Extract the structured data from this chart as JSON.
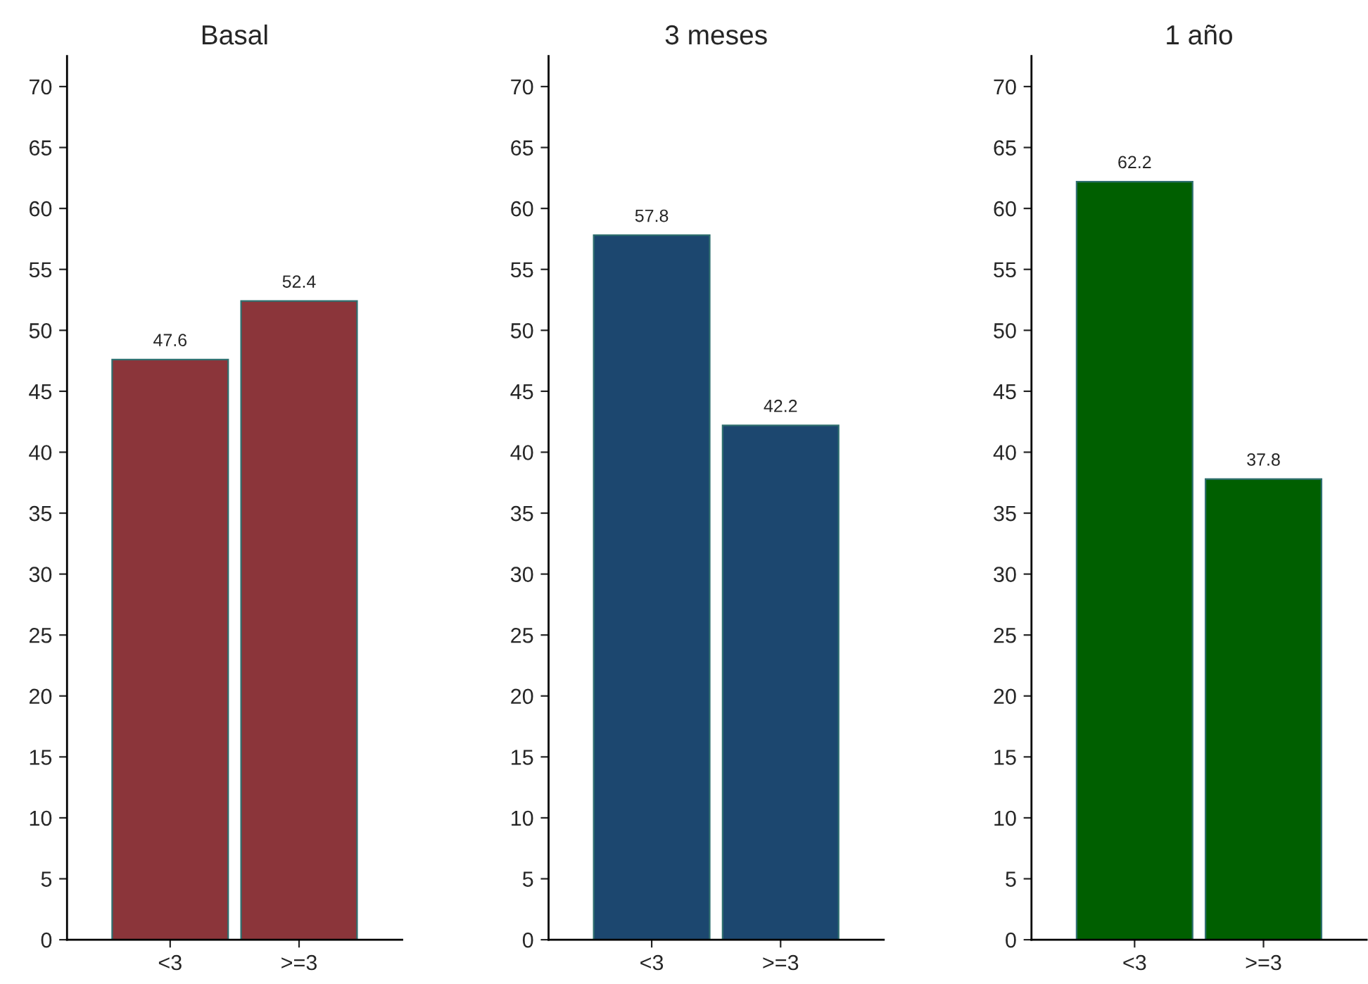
{
  "chart_data": [
    {
      "type": "bar",
      "title": "Basal",
      "categories": [
        "<3",
        ">=3"
      ],
      "values": [
        47.6,
        52.4
      ],
      "color": "#8b353a",
      "ylim": [
        0,
        72.5
      ],
      "yticks": [
        0,
        5,
        10,
        15,
        20,
        25,
        30,
        35,
        40,
        45,
        50,
        55,
        60,
        65,
        70
      ],
      "data_labels": true
    },
    {
      "type": "bar",
      "title": "3 meses",
      "categories": [
        "<3",
        ">=3"
      ],
      "values": [
        57.8,
        42.2
      ],
      "color": "#1c476f",
      "ylim": [
        0,
        72.5
      ],
      "yticks": [
        0,
        5,
        10,
        15,
        20,
        25,
        30,
        35,
        40,
        45,
        50,
        55,
        60,
        65,
        70
      ],
      "data_labels": true
    },
    {
      "type": "bar",
      "title": "1 año",
      "categories": [
        "<3",
        ">=3"
      ],
      "values": [
        62.2,
        37.8
      ],
      "color": "#005f00",
      "ylim": [
        0,
        72.5
      ],
      "yticks": [
        0,
        5,
        10,
        15,
        20,
        25,
        30,
        35,
        40,
        45,
        50,
        55,
        60,
        65,
        70
      ],
      "data_labels": true
    }
  ]
}
